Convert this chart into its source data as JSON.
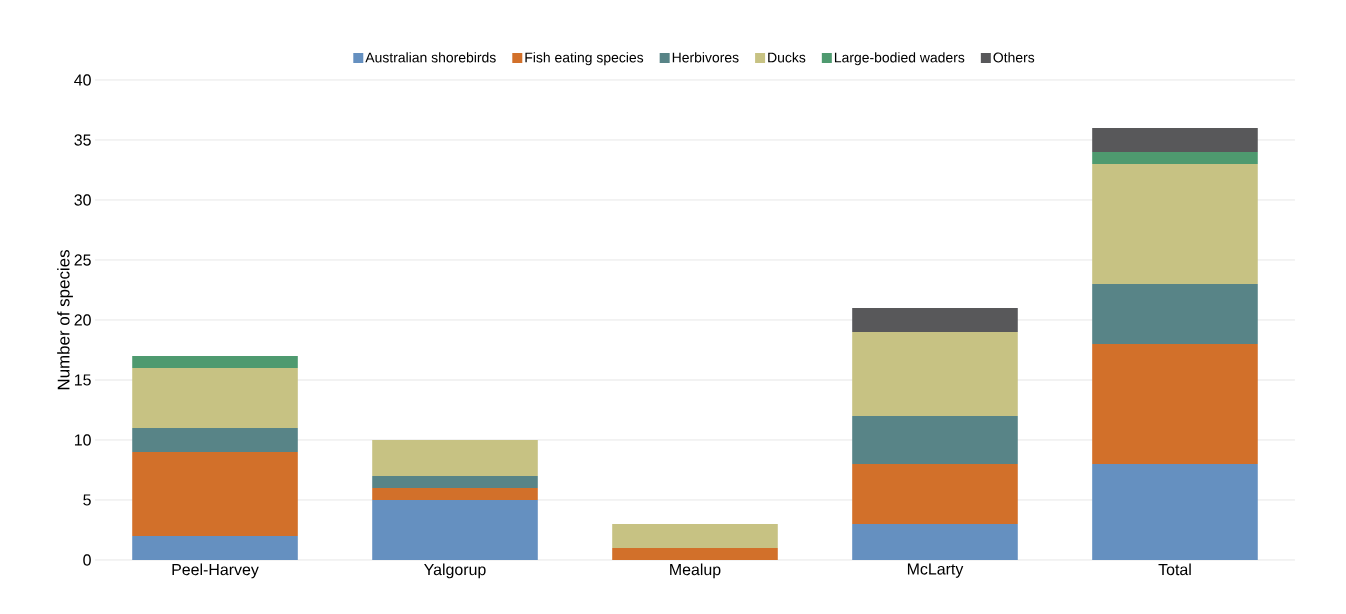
{
  "chart_data": {
    "type": "bar",
    "stacked": true,
    "ylabel": "Number of species",
    "categories": [
      "Peel-Harvey",
      "Yalgorup",
      "Mealup",
      "McLarty",
      "Total"
    ],
    "series": [
      {
        "name": "Australian shorebirds",
        "color": "#6590c0",
        "values": [
          2,
          5,
          0,
          3,
          8
        ]
      },
      {
        "name": "Fish eating species",
        "color": "#d2702a",
        "values": [
          7,
          1,
          1,
          5,
          10
        ]
      },
      {
        "name": "Herbivores",
        "color": "#588487",
        "values": [
          2,
          1,
          0,
          4,
          5
        ]
      },
      {
        "name": "Ducks",
        "color": "#c7c283",
        "values": [
          5,
          3,
          2,
          7,
          10
        ]
      },
      {
        "name": "Large-bodied waders",
        "color": "#4e9a6f",
        "values": [
          1,
          0,
          0,
          0,
          1
        ]
      },
      {
        "name": "Others",
        "color": "#58585a",
        "values": [
          0,
          0,
          0,
          2,
          2
        ]
      }
    ],
    "ylim": [
      0,
      40
    ],
    "yticks": [
      0,
      5,
      10,
      15,
      20,
      25,
      30,
      35,
      40
    ],
    "grid": "y",
    "legend": "top"
  }
}
